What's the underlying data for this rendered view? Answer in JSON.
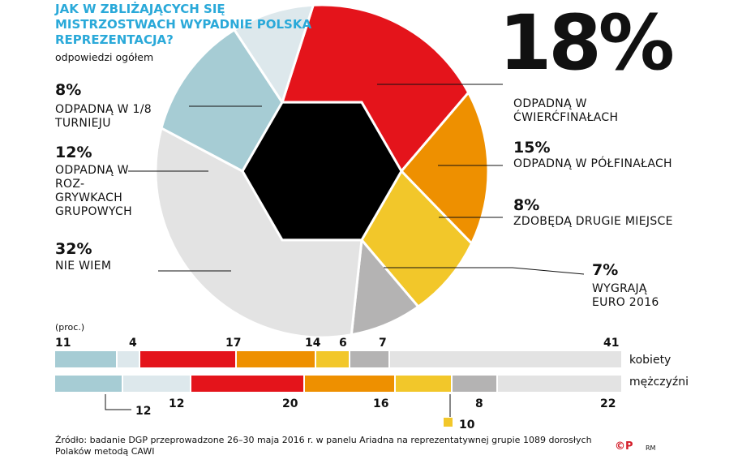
{
  "title": "JAK W ZBLIŻAJĄCYCH SIĘ MISTRZOSTWACH WYPADNIE POLSKA REPREZENTACJA?",
  "subtitle": "odpowiedzi ogółem",
  "unit_note": "(proc.)",
  "source": "Źródło: badanie DGP przeprowadzone 26–30 maja 2016 r. w panelu Ariadna na reprezentatywnej grupie 1089 dorosłych Polaków metodą CAWI",
  "credit": "RM",
  "logo_text": "©P",
  "chart_data": [
    {
      "type": "pie",
      "slices": [
        {
          "label": "ODPADNĄ W ĆWIERĆFINAŁACH",
          "pct_text": "18%",
          "value": 18,
          "color": "#e4141b"
        },
        {
          "label": "ODPADNĄ W PÓŁFINAŁACH",
          "pct_text": "15%",
          "value": 15,
          "color": "#ee9000"
        },
        {
          "label": "ZDOBĘDĄ DRUGIE MIEJSCE",
          "pct_text": "8%",
          "value": 8,
          "color": "#f2c72a"
        },
        {
          "label": "WYGRAJĄ EURO 2016",
          "pct_text": "7%",
          "value": 7,
          "color": "#b4b3b3"
        },
        {
          "label": "NIE WIEM",
          "pct_text": "32%",
          "value": 32,
          "color": "#e3e3e3"
        },
        {
          "label": "ODPADNĄ W ROZ-GRYWKACH GRUPOWYCH",
          "pct_text": "12%",
          "value": 12,
          "color": "#a6ccd4"
        },
        {
          "label": "ODPADNĄ W 1/8 TURNIEJU",
          "pct_text": "8%",
          "value": 8,
          "color": "#dde8ec"
        }
      ]
    },
    {
      "type": "bar",
      "orientation": "horizontal-stacked",
      "categories_order": [
        "ODPADNĄ W ROZ-GRYWKACH GRUPOWYCH",
        "ODPADNĄ W 1/8 TURNIEJU",
        "ODPADNĄ W ĆWIERĆFINAŁACH",
        "ODPADNĄ W PÓŁFINAŁACH",
        "ZDOBĘDĄ DRUGIE MIEJSCE",
        "WYGRAJĄ EURO 2016",
        "NIE WIEM"
      ],
      "colors": [
        "#a6ccd4",
        "#dde8ec",
        "#e4141b",
        "#ee9000",
        "#f2c72a",
        "#b4b3b3",
        "#e3e3e3"
      ],
      "series": [
        {
          "name": "kobiety",
          "values": [
            11,
            4,
            17,
            14,
            6,
            7,
            41
          ]
        },
        {
          "name": "mężczyźni",
          "values": [
            12,
            12,
            20,
            16,
            10,
            8,
            22
          ]
        }
      ]
    }
  ]
}
